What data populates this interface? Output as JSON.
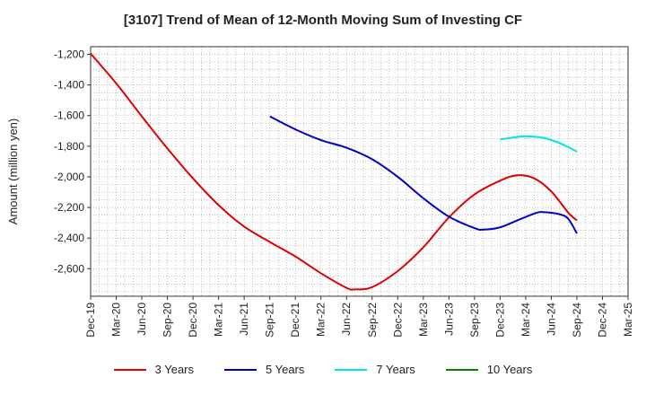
{
  "chart_data": {
    "type": "line",
    "title": "[3107]  Trend of Mean of 12-Month Moving Sum of Investing CF",
    "xlabel": "",
    "ylabel": "Amount (million yen)",
    "ylim": [
      -2780,
      -1150
    ],
    "y_ticks": [
      -1200,
      -1400,
      -1600,
      -1800,
      -2000,
      -2200,
      -2400,
      -2600
    ],
    "y_tick_labels": [
      "-1,200",
      "-1,400",
      "-1,600",
      "-1,800",
      "-2,000",
      "-2,200",
      "-2,400",
      "-2,600"
    ],
    "x_tick_labels": [
      "Dec-19",
      "Mar-20",
      "Jun-20",
      "Sep-20",
      "Dec-20",
      "Mar-21",
      "Jun-21",
      "Sep-21",
      "Dec-21",
      "Mar-22",
      "Jun-22",
      "Sep-22",
      "Dec-22",
      "Mar-23",
      "Jun-23",
      "Sep-23",
      "Dec-23",
      "Mar-24",
      "Jun-24",
      "Sep-24",
      "Dec-24",
      "Mar-25"
    ],
    "x_months_range": [
      0,
      63
    ],
    "grid": true,
    "legend_position": "bottom",
    "series": [
      {
        "name": "3 Years",
        "color": "#e00000",
        "points": [
          [
            0,
            -1195
          ],
          [
            3,
            -1390
          ],
          [
            6,
            -1605
          ],
          [
            9,
            -1815
          ],
          [
            12,
            -2010
          ],
          [
            15,
            -2185
          ],
          [
            18,
            -2325
          ],
          [
            21,
            -2425
          ],
          [
            24,
            -2520
          ],
          [
            27,
            -2630
          ],
          [
            30,
            -2725
          ],
          [
            31,
            -2735
          ],
          [
            33,
            -2720
          ],
          [
            36,
            -2615
          ],
          [
            39,
            -2460
          ],
          [
            42,
            -2265
          ],
          [
            45,
            -2115
          ],
          [
            48,
            -2025
          ],
          [
            50,
            -1990
          ],
          [
            52,
            -2010
          ],
          [
            54,
            -2095
          ],
          [
            56,
            -2235
          ],
          [
            57,
            -2285
          ]
        ]
      },
      {
        "name": "5 Years",
        "color": "#0000cc",
        "points": [
          [
            21,
            -1605
          ],
          [
            24,
            -1690
          ],
          [
            27,
            -1760
          ],
          [
            30,
            -1810
          ],
          [
            33,
            -1885
          ],
          [
            36,
            -2000
          ],
          [
            39,
            -2140
          ],
          [
            42,
            -2260
          ],
          [
            45,
            -2335
          ],
          [
            46,
            -2345
          ],
          [
            48,
            -2330
          ],
          [
            50,
            -2285
          ],
          [
            52,
            -2240
          ],
          [
            53,
            -2230
          ],
          [
            55,
            -2245
          ],
          [
            56,
            -2275
          ],
          [
            57,
            -2370
          ]
        ]
      },
      {
        "name": "7 Years",
        "color": "#00e5e5",
        "points": [
          [
            48,
            -1755
          ],
          [
            50,
            -1740
          ],
          [
            51,
            -1735
          ],
          [
            53,
            -1745
          ],
          [
            55,
            -1780
          ],
          [
            57,
            -1835
          ]
        ]
      },
      {
        "name": "10 Years",
        "color": "#008000",
        "points": []
      }
    ]
  }
}
